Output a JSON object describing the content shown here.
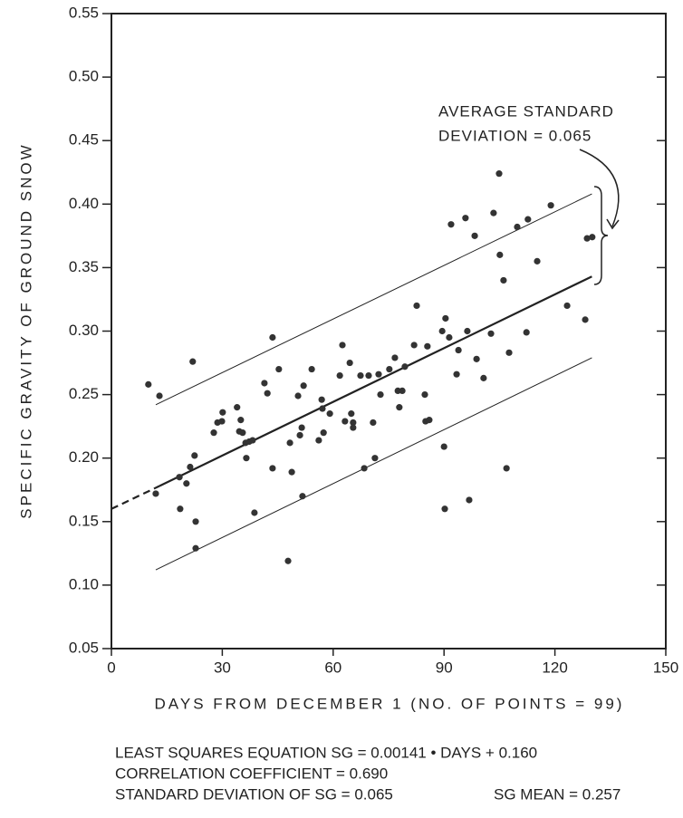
{
  "chart_data": {
    "type": "scatter",
    "x_label": "DAYS FROM DECEMBER 1 (NO. OF POINTS = 99)",
    "y_label": "SPECIFIC GRAVITY OF GROUND SNOW",
    "annotation": [
      "AVERAGE STANDARD",
      "DEVIATION = 0.065"
    ],
    "notes": [
      "LEAST SQUARES EQUATION SG = 0.00141 • DAYS + 0.160",
      "CORRELATION COEFFICIENT = 0.690",
      "STANDARD DEVIATION OF SG = 0.065",
      "SG MEAN = 0.257"
    ],
    "xlim": [
      0,
      150
    ],
    "xticks": [
      0,
      30,
      60,
      90,
      120,
      150
    ],
    "ylim": [
      0.05,
      0.55
    ],
    "yticks": [
      0.05,
      {
        "value": 0.1,
        "label": "0.10"
      },
      0.15,
      {
        "value": 0.2,
        "label": "0.20"
      },
      0.25,
      {
        "value": 0.3,
        "label": "0.30"
      },
      0.35,
      {
        "value": 0.4,
        "label": "0.40"
      },
      0.45,
      {
        "value": 0.5,
        "label": "0.50"
      },
      0.55
    ],
    "series": [
      {
        "color": "#333333",
        "x": [
          10,
          13,
          12,
          18.4,
          18.6,
          20.3,
          21.3,
          22,
          22.5,
          22.8,
          22.8,
          27.7,
          28.7,
          29.9,
          30.1,
          34,
          34.6,
          35,
          35.5,
          36.3,
          36.5,
          37.3,
          38.2,
          38.7,
          41.4,
          42.2,
          43.6,
          43.6,
          45.3,
          47.8,
          48.3,
          48.8,
          50.5,
          51,
          51.5,
          51.7,
          52,
          54.2,
          56.1,
          56.9,
          57.1,
          57.4,
          59.1,
          61.8,
          62.5,
          63.2,
          64.5,
          64.9,
          65.4,
          65.4,
          67.4,
          68.4,
          69.6,
          70.8,
          71.3,
          72.3,
          72.8,
          75.2,
          76.7,
          77.5,
          77.9,
          78.7,
          79.4,
          81.9,
          82.6,
          84.8,
          85,
          85.5,
          86,
          89.5,
          90,
          90.2,
          90.4,
          91.4,
          91.9,
          93.4,
          93.9,
          95.8,
          96.3,
          96.8,
          98.3,
          98.8,
          100.7,
          102.7,
          103.4,
          104.9,
          105.1,
          106.1,
          106.9,
          107.6,
          109.8,
          112.3,
          112.7,
          115.2,
          118.9,
          123.3,
          128.2,
          128.7,
          130.1
        ],
        "values": [
          0.258,
          0.249,
          0.172,
          0.185,
          0.16,
          0.18,
          0.193,
          0.276,
          0.202,
          0.15,
          0.129,
          0.22,
          0.228,
          0.229,
          0.236,
          0.24,
          0.221,
          0.23,
          0.22,
          0.212,
          0.2,
          0.213,
          0.214,
          0.157,
          0.259,
          0.251,
          0.295,
          0.192,
          0.27,
          0.119,
          0.212,
          0.189,
          0.249,
          0.218,
          0.224,
          0.17,
          0.257,
          0.27,
          0.214,
          0.246,
          0.239,
          0.22,
          0.235,
          0.265,
          0.289,
          0.229,
          0.275,
          0.235,
          0.228,
          0.224,
          0.265,
          0.192,
          0.265,
          0.228,
          0.2,
          0.266,
          0.25,
          0.27,
          0.279,
          0.253,
          0.24,
          0.253,
          0.272,
          0.289,
          0.32,
          0.25,
          0.229,
          0.288,
          0.23,
          0.3,
          0.209,
          0.16,
          0.31,
          0.295,
          0.384,
          0.266,
          0.285,
          0.389,
          0.3,
          0.167,
          0.375,
          0.278,
          0.263,
          0.298,
          0.393,
          0.424,
          0.36,
          0.34,
          0.192,
          0.283,
          0.382,
          0.299,
          0.388,
          0.355,
          0.399,
          0.32,
          0.309,
          0.373,
          0.374
        ]
      }
    ],
    "lines": [
      {
        "x": [
          0,
          13
        ],
        "values": [
          0.16,
          0.178
        ],
        "dashed": true,
        "width": 2.2
      },
      {
        "x": [
          13,
          130
        ],
        "values": [
          0.178,
          0.343
        ],
        "dashed": false,
        "width": 2.2
      },
      {
        "x": [
          12,
          130
        ],
        "values": [
          0.242,
          0.408
        ],
        "dashed": false,
        "width": 1
      },
      {
        "x": [
          12,
          130
        ],
        "values": [
          0.112,
          0.279
        ],
        "dashed": false,
        "width": 1
      }
    ]
  }
}
